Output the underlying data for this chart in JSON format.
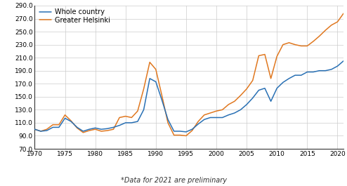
{
  "title": "",
  "footnote": "*Data for 2021 are preliminary",
  "legend_whole": "Whole country",
  "legend_helsinki": "Greater Helsinki",
  "color_whole": "#2970b4",
  "color_helsinki": "#e07820",
  "xlim": [
    1970,
    2021
  ],
  "ylim": [
    70,
    290
  ],
  "yticks": [
    70.0,
    90.0,
    110.0,
    130.0,
    150.0,
    170.0,
    190.0,
    210.0,
    230.0,
    250.0,
    270.0,
    290.0
  ],
  "xticks": [
    1970,
    1975,
    1980,
    1985,
    1990,
    1995,
    2000,
    2005,
    2010,
    2015,
    2020
  ],
  "whole_country": {
    "years": [
      1970,
      1971,
      1972,
      1973,
      1974,
      1975,
      1976,
      1977,
      1978,
      1979,
      1980,
      1981,
      1982,
      1983,
      1984,
      1985,
      1986,
      1987,
      1988,
      1989,
      1990,
      1991,
      1992,
      1993,
      1994,
      1995,
      1996,
      1997,
      1998,
      1999,
      2000,
      2001,
      2002,
      2003,
      2004,
      2005,
      2006,
      2007,
      2008,
      2009,
      2010,
      2011,
      2012,
      2013,
      2014,
      2015,
      2016,
      2017,
      2018,
      2019,
      2020,
      2021
    ],
    "values": [
      100,
      97,
      98,
      103,
      103,
      117,
      112,
      103,
      97,
      100,
      102,
      100,
      101,
      103,
      106,
      110,
      110,
      112,
      130,
      178,
      173,
      145,
      115,
      97,
      97,
      96,
      100,
      108,
      115,
      118,
      118,
      118,
      122,
      125,
      130,
      138,
      148,
      160,
      163,
      143,
      163,
      172,
      178,
      183,
      183,
      188,
      188,
      190,
      190,
      192,
      197,
      205
    ]
  },
  "greater_helsinki": {
    "years": [
      1970,
      1971,
      1972,
      1973,
      1974,
      1975,
      1976,
      1977,
      1978,
      1979,
      1980,
      1981,
      1982,
      1983,
      1984,
      1985,
      1986,
      1987,
      1988,
      1989,
      1990,
      1991,
      1992,
      1993,
      1994,
      1995,
      1996,
      1997,
      1998,
      1999,
      2000,
      2001,
      2002,
      2003,
      2004,
      2005,
      2006,
      2007,
      2008,
      2009,
      2010,
      2011,
      2012,
      2013,
      2014,
      2015,
      2016,
      2017,
      2018,
      2019,
      2020,
      2021
    ],
    "values": [
      100,
      97,
      100,
      107,
      107,
      122,
      113,
      102,
      95,
      98,
      100,
      97,
      98,
      100,
      118,
      120,
      118,
      128,
      162,
      203,
      192,
      152,
      110,
      91,
      91,
      90,
      98,
      112,
      122,
      125,
      128,
      130,
      138,
      143,
      152,
      162,
      175,
      213,
      215,
      178,
      212,
      230,
      233,
      230,
      228,
      228,
      235,
      243,
      252,
      260,
      265,
      278
    ]
  },
  "line_width": 1.1,
  "tick_labelsize": 6.5,
  "legend_fontsize": 7.0,
  "footnote_fontsize": 7.0,
  "grid_color": "#cccccc",
  "grid_lw": 0.5
}
